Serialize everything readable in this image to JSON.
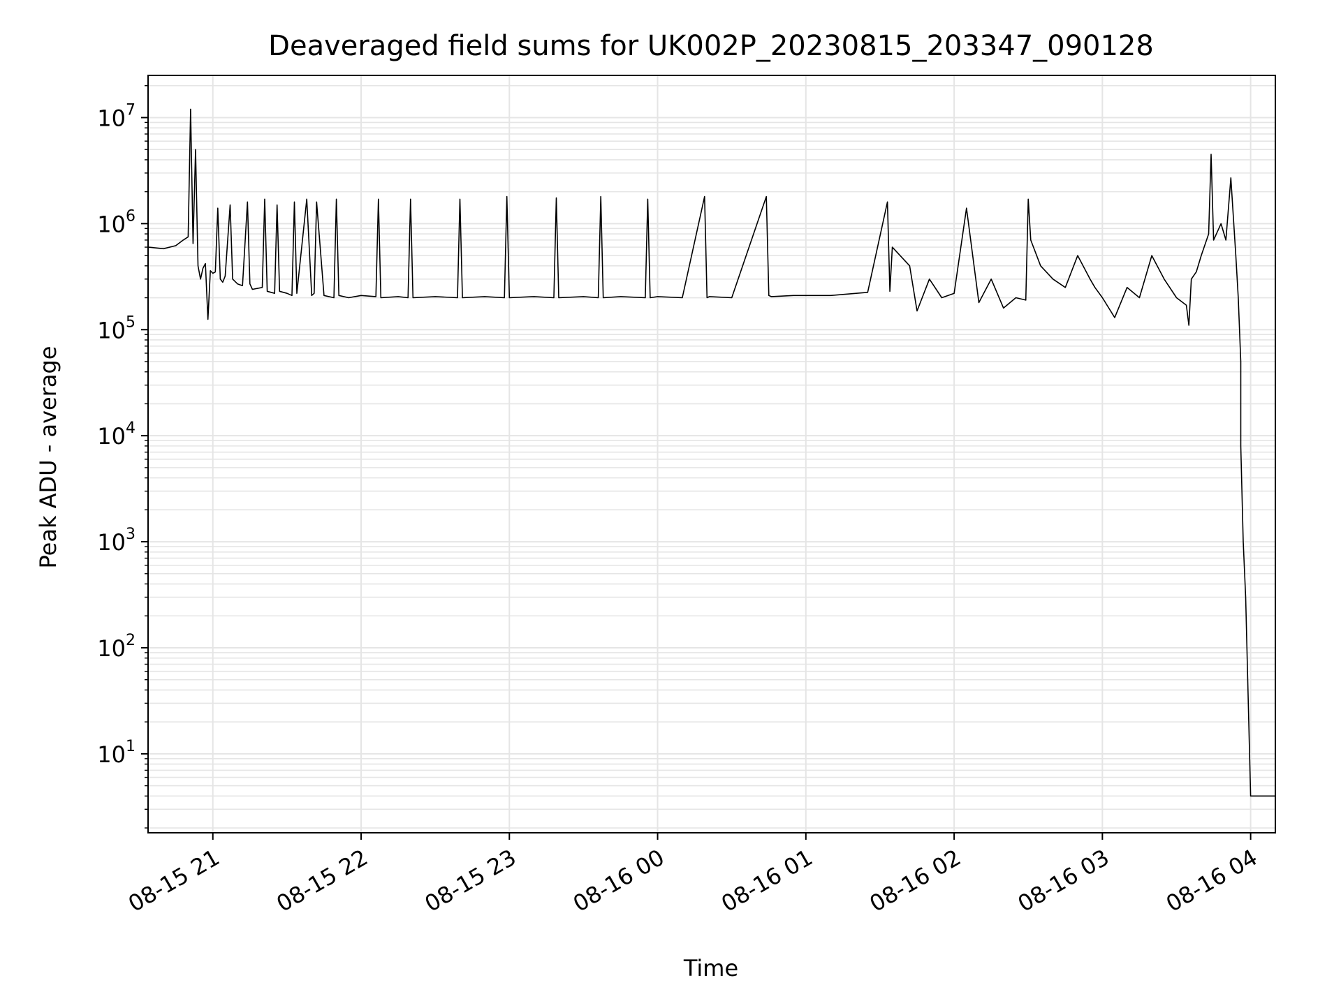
{
  "chart_data": {
    "type": "line",
    "title": "Deaveraged field sums for UK002P_20230815_203347_090128",
    "xlabel": "Time",
    "ylabel": "Peak ADU - average",
    "xlim": [
      "2023-08-15 20:33:47",
      "2023-08-16 04:10:00"
    ],
    "ylim": [
      1.8,
      25000000
    ],
    "yscale": "log",
    "x_ticks": [
      "08-15 21",
      "08-15 22",
      "08-15 23",
      "08-16 00",
      "08-16 01",
      "08-16 02",
      "08-16 03",
      "08-16 04"
    ],
    "x_tick_values": [
      "2023-08-15 21:00",
      "2023-08-15 22:00",
      "2023-08-15 23:00",
      "2023-08-16 00:00",
      "2023-08-16 01:00",
      "2023-08-16 02:00",
      "2023-08-16 03:00",
      "2023-08-16 04:00"
    ],
    "y_ticks": [
      {
        "base": "10",
        "exp": "1",
        "value": 10
      },
      {
        "base": "10",
        "exp": "2",
        "value": 100
      },
      {
        "base": "10",
        "exp": "3",
        "value": 1000
      },
      {
        "base": "10",
        "exp": "4",
        "value": 10000
      },
      {
        "base": "10",
        "exp": "5",
        "value": 100000
      },
      {
        "base": "10",
        "exp": "6",
        "value": 1000000
      },
      {
        "base": "10",
        "exp": "7",
        "value": 10000000
      }
    ],
    "grid": true,
    "line_color": "#000000",
    "grid_color": "#e5e5e5",
    "series": [
      {
        "x": [
          "2023-08-15 20:34",
          "2023-08-15 20:40",
          "2023-08-15 20:45",
          "2023-08-15 20:48",
          "2023-08-15 20:50",
          "2023-08-15 20:51",
          "2023-08-15 20:52",
          "2023-08-15 20:53",
          "2023-08-15 20:54",
          "2023-08-15 20:55",
          "2023-08-15 20:56",
          "2023-08-15 20:57",
          "2023-08-15 20:58",
          "2023-08-15 20:59",
          "2023-08-15 21:00",
          "2023-08-15 21:01",
          "2023-08-15 21:02",
          "2023-08-15 21:03",
          "2023-08-15 21:04",
          "2023-08-15 21:05",
          "2023-08-15 21:07",
          "2023-08-15 21:08",
          "2023-08-15 21:10",
          "2023-08-15 21:12",
          "2023-08-15 21:14",
          "2023-08-15 21:15",
          "2023-08-15 21:16",
          "2023-08-15 21:20",
          "2023-08-15 21:21",
          "2023-08-15 21:22",
          "2023-08-15 21:25",
          "2023-08-15 21:26",
          "2023-08-15 21:27",
          "2023-08-15 21:30",
          "2023-08-15 21:32",
          "2023-08-15 21:33",
          "2023-08-15 21:34",
          "2023-08-15 21:38",
          "2023-08-15 21:40",
          "2023-08-15 21:41",
          "2023-08-15 21:42",
          "2023-08-15 21:45",
          "2023-08-15 21:49",
          "2023-08-15 21:50",
          "2023-08-15 21:51",
          "2023-08-15 21:55",
          "2023-08-15 22:00",
          "2023-08-15 22:06",
          "2023-08-15 22:07",
          "2023-08-15 22:08",
          "2023-08-15 22:15",
          "2023-08-15 22:19",
          "2023-08-15 22:20",
          "2023-08-15 22:21",
          "2023-08-15 22:30",
          "2023-08-15 22:39",
          "2023-08-15 22:40",
          "2023-08-15 22:41",
          "2023-08-15 22:50",
          "2023-08-15 22:58",
          "2023-08-15 22:59",
          "2023-08-15 23:00",
          "2023-08-15 23:10",
          "2023-08-15 23:18",
          "2023-08-15 23:19",
          "2023-08-15 23:20",
          "2023-08-15 23:30",
          "2023-08-15 23:36",
          "2023-08-15 23:37",
          "2023-08-15 23:38",
          "2023-08-15 23:45",
          "2023-08-15 23:55",
          "2023-08-15 23:56",
          "2023-08-15 23:57",
          "2023-08-16 00:00",
          "2023-08-16 00:10",
          "2023-08-16 00:19",
          "2023-08-16 00:20",
          "2023-08-16 00:21",
          "2023-08-16 00:30",
          "2023-08-16 00:44",
          "2023-08-16 00:45",
          "2023-08-16 00:46",
          "2023-08-16 00:55",
          "2023-08-16 01:00",
          "2023-08-16 01:10",
          "2023-08-16 01:15",
          "2023-08-16 01:25",
          "2023-08-16 01:33",
          "2023-08-16 01:34",
          "2023-08-16 01:35",
          "2023-08-16 01:42",
          "2023-08-16 01:45",
          "2023-08-16 01:50",
          "2023-08-16 01:55",
          "2023-08-16 02:00",
          "2023-08-16 02:05",
          "2023-08-16 02:10",
          "2023-08-16 02:15",
          "2023-08-16 02:20",
          "2023-08-16 02:25",
          "2023-08-16 02:29",
          "2023-08-16 02:30",
          "2023-08-16 02:31",
          "2023-08-16 02:35",
          "2023-08-16 02:40",
          "2023-08-16 02:45",
          "2023-08-16 02:50",
          "2023-08-16 02:55",
          "2023-08-16 02:57",
          "2023-08-16 03:00",
          "2023-08-16 03:05",
          "2023-08-16 03:10",
          "2023-08-16 03:15",
          "2023-08-16 03:20",
          "2023-08-16 03:25",
          "2023-08-16 03:30",
          "2023-08-16 03:34",
          "2023-08-16 03:35",
          "2023-08-16 03:36",
          "2023-08-16 03:38",
          "2023-08-16 03:40",
          "2023-08-16 03:43",
          "2023-08-16 03:44",
          "2023-08-16 03:45",
          "2023-08-16 03:48",
          "2023-08-16 03:50",
          "2023-08-16 03:52",
          "2023-08-16 03:54",
          "2023-08-16 03:55",
          "2023-08-16 03:56",
          "2023-08-16 03:56",
          "2023-08-16 03:57",
          "2023-08-16 03:58",
          "2023-08-16 04:00",
          "2023-08-16 04:05",
          "2023-08-16 04:10"
        ],
        "y": [
          600000,
          580000,
          620000,
          700000,
          750000,
          12000000,
          650000,
          5000000,
          400000,
          300000,
          380000,
          420000,
          125000,
          360000,
          340000,
          350000,
          1400000,
          300000,
          280000,
          320000,
          1500000,
          300000,
          270000,
          260000,
          1600000,
          270000,
          240000,
          250000,
          1700000,
          230000,
          220000,
          1500000,
          230000,
          220000,
          210000,
          1600000,
          220000,
          1700000,
          210000,
          220000,
          1600000,
          210000,
          200000,
          1700000,
          210000,
          200000,
          210000,
          205000,
          1700000,
          200000,
          205000,
          200000,
          1700000,
          200000,
          205000,
          200000,
          1700000,
          200000,
          205000,
          200000,
          1800000,
          200000,
          205000,
          200000,
          1750000,
          200000,
          205000,
          200000,
          1800000,
          200000,
          205000,
          200000,
          1700000,
          200000,
          205000,
          200000,
          1800000,
          200000,
          205000,
          200000,
          1800000,
          210000,
          205000,
          210000,
          210000,
          210000,
          215000,
          225000,
          1600000,
          230000,
          600000,
          400000,
          150000,
          300000,
          200000,
          220000,
          1400000,
          180000,
          300000,
          160000,
          200000,
          190000,
          1700000,
          700000,
          400000,
          300000,
          250000,
          500000,
          300000,
          250000,
          200000,
          130000,
          250000,
          200000,
          500000,
          300000,
          200000,
          170000,
          110000,
          300000,
          350000,
          500000,
          800000,
          4500000,
          700000,
          1000000,
          700000,
          2700000,
          500000,
          200000,
          50000,
          8000,
          1000,
          300,
          4,
          4,
          4
        ]
      }
    ]
  }
}
